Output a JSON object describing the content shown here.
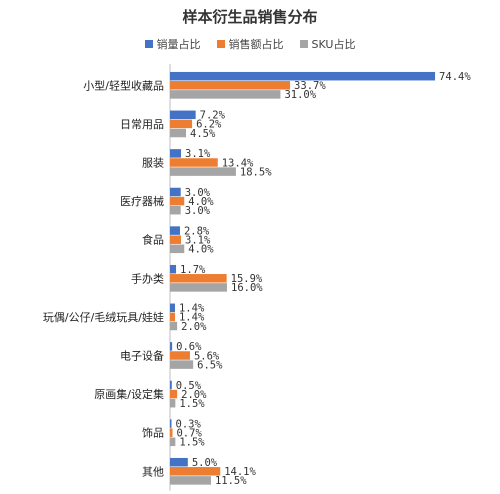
{
  "chart_data": {
    "type": "bar",
    "orientation": "horizontal",
    "title": "样本衍生品销售分布",
    "legend_position": "top",
    "grid": false,
    "xlim": [
      0,
      80
    ],
    "categories": [
      "小型/轻型收藏品",
      "日常用品",
      "服装",
      "医疗器械",
      "食品",
      "手办类",
      "玩偶/公仔/毛绒玩具/娃娃",
      "电子设备",
      "原画集/设定集",
      "饰品",
      "其他"
    ],
    "series": [
      {
        "name": "销量占比",
        "color": "#4472C4",
        "values": [
          74.4,
          7.2,
          3.1,
          3.0,
          2.8,
          1.7,
          1.4,
          0.6,
          0.5,
          0.3,
          5.0
        ],
        "labels": [
          "74.4%",
          "7.2%",
          "3.1%",
          "3.0%",
          "2.8%",
          "1.7%",
          "1.4%",
          "0.6%",
          "0.5%",
          "0.3%",
          "5.0%"
        ]
      },
      {
        "name": "销售额占比",
        "color": "#ED7D31",
        "values": [
          33.7,
          6.2,
          13.4,
          4.0,
          3.1,
          15.9,
          1.4,
          5.6,
          2.0,
          0.7,
          14.1
        ],
        "labels": [
          "33.7%",
          "6.2%",
          "13.4%",
          "4.0%",
          "3.1%",
          "15.9%",
          "1.4%",
          "5.6%",
          "2.0%",
          "0.7%",
          "14.1%"
        ]
      },
      {
        "name": "SKU占比",
        "color": "#A5A5A5",
        "values": [
          31.0,
          4.5,
          18.5,
          3.0,
          4.0,
          16.0,
          2.0,
          6.5,
          1.5,
          1.5,
          11.5
        ],
        "labels": [
          "31.0%",
          "4.5%",
          "18.5%",
          "3.0%",
          "4.0%",
          "16.0%",
          "2.0%",
          "6.5%",
          "1.5%",
          "1.5%",
          "11.5%"
        ]
      }
    ]
  }
}
